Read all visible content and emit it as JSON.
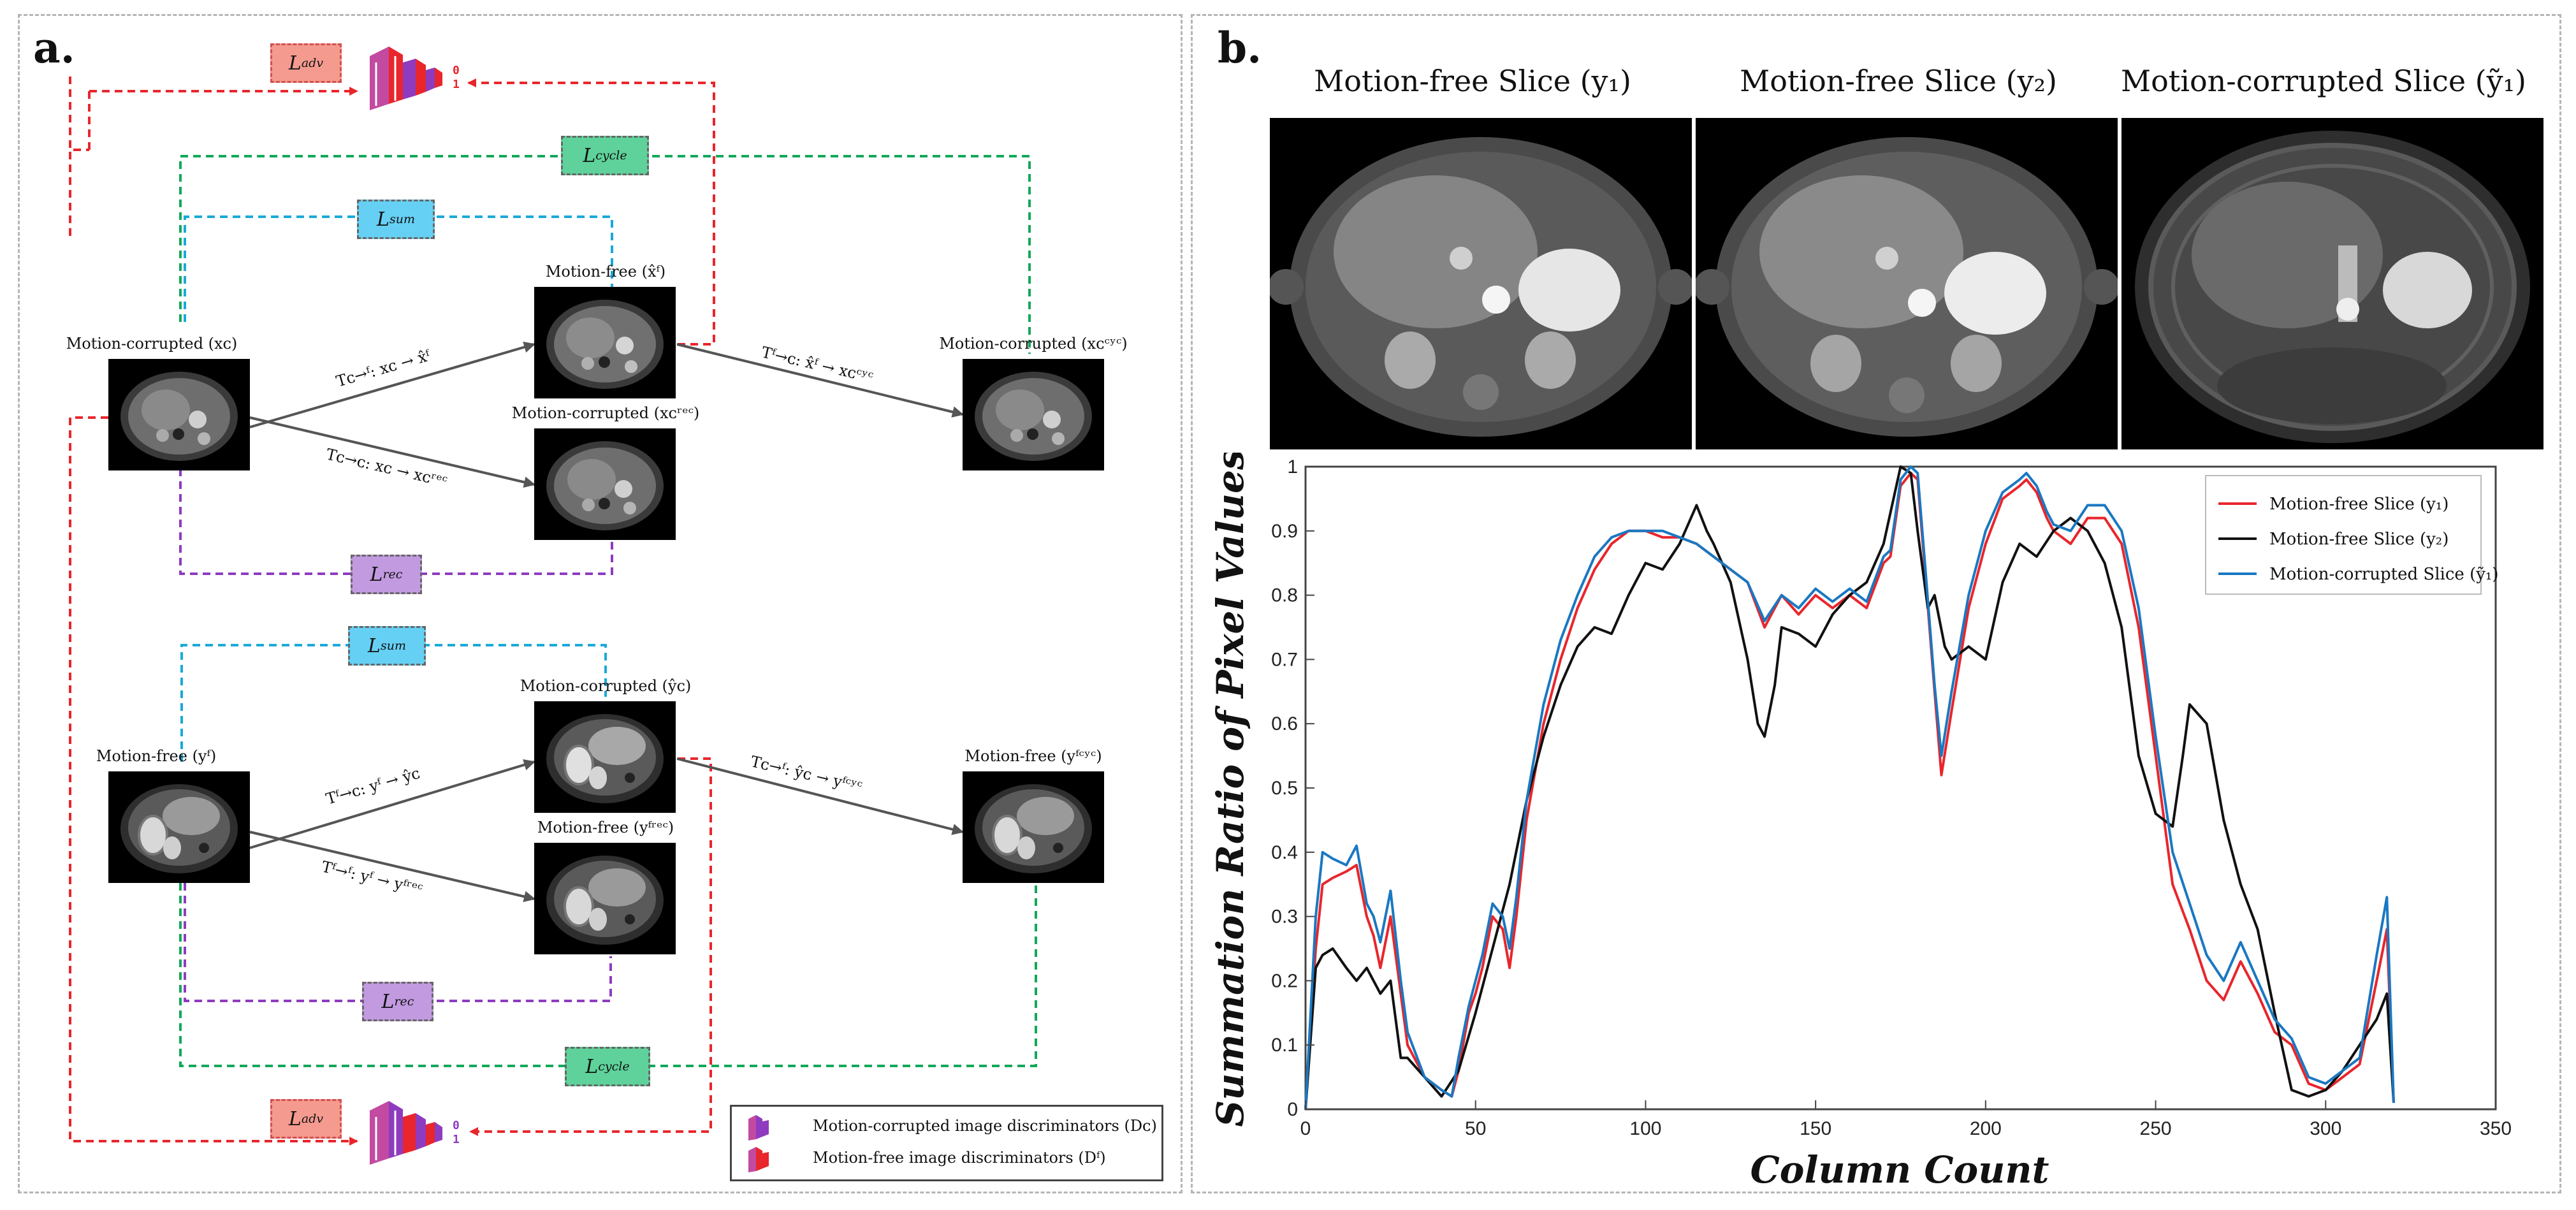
{
  "panel_a": {
    "letter": "a.",
    "losses": {
      "adv_top": "L",
      "adv_top_sub": "adv",
      "cycle_top": "L",
      "cycle_top_sub": "cycle",
      "sum_top": "L",
      "sum_top_sub": "sum",
      "rec_top": "L",
      "rec_top_sub": "rec",
      "sum_bottom": "L",
      "sum_bottom_sub": "sum",
      "rec_bottom": "L",
      "rec_bottom_sub": "rec",
      "cycle_bottom": "L",
      "cycle_bottom_sub": "cycle",
      "adv_bottom": "L",
      "adv_bottom_sub": "adv"
    },
    "disc_scale": {
      "top": "0",
      "bottom": "1"
    },
    "nodes": {
      "xc": "Motion-corrupted (xᴄ)",
      "xf_hat": "Motion-free (x̂ᶠ)",
      "xc_rec": "Motion-corrupted (xᴄʳᵉᶜ)",
      "xc_cyc": "Motion-corrupted (xᴄᶜʸᶜ)",
      "yf": "Motion-free (yᶠ)",
      "yc_hat": "Motion-corrupted (ŷᴄ)",
      "yf_rec": "Motion-free (yᶠʳᵉᶜ)",
      "yf_cyc": "Motion-free (yᶠᶜʸᶜ)"
    },
    "edges": {
      "t1": "Tᴄ→ᶠ: xᴄ → x̂ᶠ",
      "t2": "Tᴄ→ᴄ: xᴄ → xᴄʳᵉᶜ",
      "t3": "Tᶠ→ᴄ: x̂ᶠ → xᴄᶜʸᶜ",
      "t4": "Tᶠ→ᴄ: yᶠ → ŷᴄ",
      "t5": "Tᶠ→ᶠ: yᶠ → yᶠʳᵉᶜ",
      "t6": "Tᴄ→ᶠ: ŷᴄ → yᶠᶜʸᶜ"
    },
    "legend": {
      "dc": "Motion-corrupted image discriminators (Dᴄ)",
      "df": "Motion-free image discriminators (Dᶠ)"
    },
    "colors": {
      "adv": "#e8262c",
      "cycle": "#12a85a",
      "sum": "#1aa9d8",
      "rec": "#8e3bbf",
      "adv_fill": "#f59a8f",
      "cycle_fill": "#5ed29a",
      "sum_fill": "#66d0f4",
      "rec_fill": "#c29ae0"
    }
  },
  "panel_b": {
    "letter": "b.",
    "slice_titles": [
      "Motion-free Slice (y₁)",
      "Motion-free Slice (y₂)",
      "Motion-corrupted Slice (ỹ₁)"
    ]
  },
  "chart_data": {
    "type": "line",
    "title": "",
    "xlabel": "Column Count",
    "ylabel": "Summation Ratio of Pixel Values",
    "xlim": [
      0,
      350
    ],
    "ylim": [
      0,
      1
    ],
    "xticks": [
      "0",
      "50",
      "100",
      "150",
      "200",
      "250",
      "300",
      "350"
    ],
    "yticks": [
      "0",
      "0.1",
      "0.2",
      "0.3",
      "0.4",
      "0.5",
      "0.6",
      "0.7",
      "0.8",
      "0.9",
      "1"
    ],
    "legend_position": "top-right",
    "series": [
      {
        "name": "Motion-free Slice (y₁)",
        "color": "#e8262c",
        "x": [
          0,
          3,
          5,
          8,
          12,
          15,
          18,
          20,
          22,
          25,
          28,
          30,
          35,
          40,
          43,
          45,
          48,
          50,
          52,
          55,
          58,
          60,
          62,
          65,
          70,
          75,
          80,
          85,
          90,
          95,
          100,
          105,
          110,
          115,
          120,
          125,
          130,
          135,
          140,
          145,
          150,
          155,
          160,
          165,
          170,
          172,
          175,
          178,
          180,
          182,
          185,
          187,
          190,
          195,
          200,
          205,
          210,
          212,
          215,
          218,
          220,
          225,
          230,
          235,
          240,
          245,
          250,
          255,
          260,
          265,
          270,
          275,
          280,
          285,
          290,
          295,
          300,
          305,
          310,
          315,
          318,
          320
        ],
        "y": [
          0,
          0.25,
          0.35,
          0.36,
          0.37,
          0.38,
          0.3,
          0.27,
          0.22,
          0.3,
          0.18,
          0.1,
          0.05,
          0.03,
          0.02,
          0.06,
          0.15,
          0.18,
          0.22,
          0.3,
          0.28,
          0.22,
          0.3,
          0.45,
          0.6,
          0.7,
          0.78,
          0.84,
          0.88,
          0.9,
          0.9,
          0.89,
          0.89,
          0.88,
          0.86,
          0.84,
          0.82,
          0.75,
          0.8,
          0.77,
          0.8,
          0.78,
          0.8,
          0.78,
          0.85,
          0.86,
          0.97,
          0.99,
          0.98,
          0.85,
          0.65,
          0.52,
          0.62,
          0.78,
          0.88,
          0.95,
          0.97,
          0.98,
          0.96,
          0.92,
          0.9,
          0.88,
          0.92,
          0.92,
          0.88,
          0.75,
          0.55,
          0.35,
          0.28,
          0.2,
          0.17,
          0.23,
          0.18,
          0.12,
          0.1,
          0.04,
          0.03,
          0.05,
          0.07,
          0.2,
          0.28,
          0.01
        ]
      },
      {
        "name": "Motion-free Slice (y₂)",
        "color": "#111111",
        "x": [
          0,
          3,
          5,
          8,
          12,
          15,
          18,
          20,
          22,
          25,
          28,
          30,
          35,
          40,
          45,
          50,
          55,
          60,
          65,
          70,
          75,
          80,
          85,
          90,
          95,
          100,
          105,
          110,
          115,
          118,
          120,
          125,
          130,
          133,
          135,
          138,
          140,
          145,
          150,
          155,
          160,
          165,
          170,
          175,
          178,
          180,
          183,
          185,
          188,
          190,
          195,
          200,
          205,
          210,
          215,
          220,
          225,
          230,
          235,
          240,
          245,
          250,
          255,
          258,
          260,
          265,
          270,
          275,
          280,
          285,
          290,
          295,
          300,
          305,
          310,
          315,
          318,
          320
        ],
        "y": [
          0,
          0.22,
          0.24,
          0.25,
          0.22,
          0.2,
          0.22,
          0.2,
          0.18,
          0.2,
          0.08,
          0.08,
          0.05,
          0.02,
          0.06,
          0.15,
          0.25,
          0.35,
          0.48,
          0.58,
          0.66,
          0.72,
          0.75,
          0.74,
          0.8,
          0.85,
          0.84,
          0.88,
          0.94,
          0.9,
          0.88,
          0.82,
          0.7,
          0.6,
          0.58,
          0.66,
          0.75,
          0.74,
          0.72,
          0.77,
          0.8,
          0.82,
          0.88,
          1.0,
          0.99,
          0.9,
          0.78,
          0.8,
          0.72,
          0.7,
          0.72,
          0.7,
          0.82,
          0.88,
          0.86,
          0.9,
          0.92,
          0.9,
          0.85,
          0.75,
          0.55,
          0.46,
          0.44,
          0.55,
          0.63,
          0.6,
          0.45,
          0.35,
          0.28,
          0.15,
          0.03,
          0.02,
          0.03,
          0.06,
          0.1,
          0.14,
          0.18,
          0.01
        ]
      },
      {
        "name": "Motion-corrupted Slice (ỹ₁)",
        "color": "#1a78c2",
        "x": [
          0,
          3,
          5,
          8,
          12,
          15,
          18,
          20,
          22,
          25,
          28,
          30,
          35,
          40,
          43,
          45,
          48,
          50,
          52,
          55,
          58,
          60,
          62,
          65,
          70,
          75,
          80,
          85,
          90,
          95,
          100,
          105,
          110,
          115,
          120,
          125,
          130,
          135,
          140,
          145,
          150,
          155,
          160,
          165,
          170,
          172,
          175,
          178,
          180,
          182,
          185,
          187,
          190,
          195,
          200,
          205,
          210,
          212,
          215,
          218,
          220,
          225,
          230,
          235,
          240,
          245,
          250,
          255,
          260,
          265,
          270,
          275,
          280,
          285,
          290,
          295,
          300,
          305,
          310,
          315,
          318,
          320
        ],
        "y": [
          0,
          0.3,
          0.4,
          0.39,
          0.38,
          0.41,
          0.32,
          0.3,
          0.26,
          0.34,
          0.2,
          0.12,
          0.05,
          0.03,
          0.02,
          0.08,
          0.16,
          0.2,
          0.24,
          0.32,
          0.3,
          0.25,
          0.33,
          0.48,
          0.63,
          0.73,
          0.8,
          0.86,
          0.89,
          0.9,
          0.9,
          0.9,
          0.89,
          0.88,
          0.86,
          0.84,
          0.82,
          0.76,
          0.8,
          0.78,
          0.81,
          0.79,
          0.81,
          0.79,
          0.86,
          0.87,
          0.98,
          1.0,
          0.99,
          0.86,
          0.66,
          0.55,
          0.65,
          0.8,
          0.9,
          0.96,
          0.98,
          0.99,
          0.97,
          0.93,
          0.91,
          0.9,
          0.94,
          0.94,
          0.9,
          0.78,
          0.58,
          0.4,
          0.32,
          0.24,
          0.2,
          0.26,
          0.2,
          0.14,
          0.11,
          0.05,
          0.04,
          0.06,
          0.08,
          0.24,
          0.33,
          0.01
        ]
      }
    ]
  }
}
